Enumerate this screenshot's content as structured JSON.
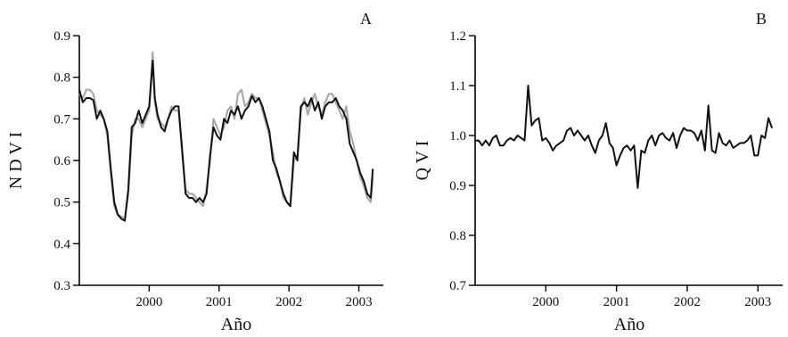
{
  "chart_data": [
    {
      "type": "line",
      "panel_label": "A",
      "xlabel": "Año",
      "ylabel": "N D V I",
      "xlim": [
        1999.0,
        2003.35
      ],
      "ylim": [
        0.3,
        0.9
      ],
      "x_ticks": [
        2000,
        2001,
        2002,
        2003
      ],
      "y_ticks": [
        0.3,
        0.4,
        0.5,
        0.6,
        0.7,
        0.8,
        0.9
      ],
      "y_tick_labels": [
        "0.3",
        "0.4",
        "0.5",
        "0.6",
        "0.7",
        "0.8",
        "0.9"
      ],
      "grid": false,
      "colors": [
        "#111111",
        "#a9a9a9"
      ],
      "series": [
        {
          "x": [
            1999.0,
            1999.05,
            1999.1,
            1999.15,
            1999.2,
            1999.25,
            1999.3,
            1999.35,
            1999.4,
            1999.45,
            1999.5,
            1999.55,
            1999.6,
            1999.65,
            1999.7,
            1999.75,
            1999.8,
            1999.85,
            1999.9,
            1999.95,
            2000.0,
            2000.05,
            2000.08,
            2000.12,
            2000.17,
            2000.22,
            2000.27,
            2000.32,
            2000.37,
            2000.42,
            2000.47,
            2000.52,
            2000.57,
            2000.62,
            2000.67,
            2000.72,
            2000.77,
            2000.82,
            2000.87,
            2000.92,
            2000.97,
            2001.02,
            2001.07,
            2001.12,
            2001.17,
            2001.22,
            2001.27,
            2001.32,
            2001.37,
            2001.42,
            2001.47,
            2001.52,
            2001.57,
            2001.62,
            2001.67,
            2001.72,
            2001.77,
            2001.82,
            2001.87,
            2001.92,
            2001.97,
            2002.02,
            2002.07,
            2002.12,
            2002.17,
            2002.22,
            2002.27,
            2002.32,
            2002.37,
            2002.42,
            2002.47,
            2002.52,
            2002.57,
            2002.62,
            2002.67,
            2002.72,
            2002.77,
            2002.82,
            2002.87,
            2002.92,
            2002.97,
            2003.02,
            2003.07,
            2003.12,
            2003.17,
            2003.2
          ],
          "y": [
            0.77,
            0.74,
            0.75,
            0.75,
            0.745,
            0.7,
            0.72,
            0.7,
            0.67,
            0.58,
            0.5,
            0.47,
            0.46,
            0.455,
            0.53,
            0.68,
            0.69,
            0.72,
            0.69,
            0.71,
            0.73,
            0.84,
            0.75,
            0.71,
            0.68,
            0.67,
            0.7,
            0.72,
            0.73,
            0.73,
            0.63,
            0.52,
            0.51,
            0.51,
            0.5,
            0.51,
            0.5,
            0.52,
            0.61,
            0.68,
            0.66,
            0.65,
            0.7,
            0.69,
            0.72,
            0.71,
            0.73,
            0.7,
            0.72,
            0.73,
            0.755,
            0.74,
            0.75,
            0.73,
            0.7,
            0.67,
            0.6,
            0.58,
            0.55,
            0.52,
            0.5,
            0.49,
            0.62,
            0.6,
            0.73,
            0.74,
            0.73,
            0.75,
            0.72,
            0.74,
            0.7,
            0.73,
            0.74,
            0.74,
            0.75,
            0.73,
            0.72,
            0.7,
            0.64,
            0.62,
            0.6,
            0.57,
            0.55,
            0.52,
            0.51,
            0.58
          ]
        },
        {
          "x": [
            1999.0,
            1999.05,
            1999.1,
            1999.15,
            1999.2,
            1999.25,
            1999.3,
            1999.35,
            1999.4,
            1999.45,
            1999.5,
            1999.55,
            1999.6,
            1999.65,
            1999.7,
            1999.75,
            1999.8,
            1999.85,
            1999.9,
            1999.95,
            2000.0,
            2000.05,
            2000.08,
            2000.12,
            2000.17,
            2000.22,
            2000.27,
            2000.32,
            2000.37,
            2000.42,
            2000.47,
            2000.52,
            2000.57,
            2000.62,
            2000.67,
            2000.72,
            2000.77,
            2000.82,
            2000.87,
            2000.92,
            2000.97,
            2001.02,
            2001.07,
            2001.12,
            2001.17,
            2001.22,
            2001.27,
            2001.32,
            2001.37,
            2001.42,
            2001.47,
            2001.52,
            2001.57,
            2001.62,
            2001.67,
            2001.72,
            2001.77,
            2001.82,
            2001.87,
            2001.92,
            2001.97,
            2002.02,
            2002.07,
            2002.12,
            2002.17,
            2002.22,
            2002.27,
            2002.32,
            2002.37,
            2002.42,
            2002.47,
            2002.52,
            2002.57,
            2002.62,
            2002.67,
            2002.72,
            2002.77,
            2002.82,
            2002.87,
            2002.92,
            2002.97,
            2003.02,
            2003.07,
            2003.12,
            2003.17,
            2003.2
          ],
          "y": [
            0.76,
            0.75,
            0.77,
            0.77,
            0.76,
            0.72,
            0.71,
            0.7,
            0.66,
            0.57,
            0.49,
            0.47,
            0.465,
            0.46,
            0.52,
            0.66,
            0.7,
            0.7,
            0.68,
            0.7,
            0.72,
            0.86,
            0.74,
            0.7,
            0.69,
            0.68,
            0.7,
            0.73,
            0.72,
            0.72,
            0.62,
            0.53,
            0.52,
            0.52,
            0.51,
            0.5,
            0.49,
            0.53,
            0.6,
            0.7,
            0.68,
            0.66,
            0.68,
            0.72,
            0.73,
            0.7,
            0.76,
            0.77,
            0.73,
            0.74,
            0.76,
            0.75,
            0.75,
            0.72,
            0.69,
            0.66,
            0.62,
            0.57,
            0.55,
            0.51,
            0.5,
            0.49,
            0.6,
            0.61,
            0.72,
            0.75,
            0.71,
            0.74,
            0.76,
            0.73,
            0.71,
            0.74,
            0.76,
            0.76,
            0.74,
            0.72,
            0.7,
            0.73,
            0.67,
            0.64,
            0.6,
            0.56,
            0.54,
            0.51,
            0.5,
            0.56
          ]
        }
      ]
    },
    {
      "type": "line",
      "panel_label": "B",
      "xlabel": "Año",
      "ylabel": "Q V I",
      "xlim": [
        1999.0,
        2003.35
      ],
      "ylim": [
        0.7,
        1.2
      ],
      "x_ticks": [
        2000,
        2001,
        2002,
        2003
      ],
      "y_ticks": [
        0.7,
        0.8,
        0.9,
        1.0,
        1.1,
        1.2
      ],
      "y_tick_labels": [
        "0.7",
        "0.8",
        "0.9",
        "1.0",
        "1.1",
        "1.2"
      ],
      "grid": false,
      "colors": [
        "#111111"
      ],
      "series": [
        {
          "x": [
            1999.0,
            1999.05,
            1999.1,
            1999.15,
            1999.2,
            1999.25,
            1999.3,
            1999.35,
            1999.4,
            1999.45,
            1999.5,
            1999.55,
            1999.6,
            1999.65,
            1999.7,
            1999.75,
            1999.8,
            1999.85,
            1999.9,
            1999.95,
            2000.0,
            2000.05,
            2000.1,
            2000.15,
            2000.2,
            2000.25,
            2000.3,
            2000.35,
            2000.4,
            2000.45,
            2000.5,
            2000.55,
            2000.6,
            2000.65,
            2000.7,
            2000.75,
            2000.8,
            2000.85,
            2000.9,
            2000.95,
            2001.0,
            2001.05,
            2001.1,
            2001.15,
            2001.2,
            2001.25,
            2001.3,
            2001.35,
            2001.4,
            2001.45,
            2001.5,
            2001.55,
            2001.6,
            2001.65,
            2001.7,
            2001.75,
            2001.8,
            2001.85,
            2001.9,
            2001.95,
            2002.0,
            2002.05,
            2002.1,
            2002.15,
            2002.2,
            2002.25,
            2002.3,
            2002.35,
            2002.4,
            2002.45,
            2002.5,
            2002.55,
            2002.6,
            2002.65,
            2002.7,
            2002.75,
            2002.8,
            2002.85,
            2002.9,
            2002.95,
            2003.0,
            2003.05,
            2003.1,
            2003.15,
            2003.2
          ],
          "y": [
            0.99,
            0.99,
            0.98,
            0.99,
            0.98,
            0.995,
            1.0,
            0.98,
            0.98,
            0.99,
            0.995,
            0.99,
            1.0,
            0.995,
            0.99,
            1.1,
            1.02,
            1.03,
            1.035,
            0.99,
            0.995,
            0.985,
            0.97,
            0.98,
            0.985,
            0.99,
            1.01,
            1.015,
            1.0,
            1.01,
            1.0,
            0.99,
            1.0,
            0.98,
            0.965,
            0.99,
            1.0,
            1.025,
            0.985,
            0.975,
            0.94,
            0.96,
            0.975,
            0.98,
            0.97,
            0.98,
            0.895,
            0.97,
            0.965,
            0.99,
            1.0,
            0.98,
            1.0,
            1.005,
            0.995,
            0.99,
            1.005,
            0.975,
            1.0,
            1.015,
            1.01,
            1.01,
            1.005,
            0.99,
            1.01,
            0.97,
            1.06,
            0.97,
            0.965,
            1.005,
            0.985,
            0.98,
            0.99,
            0.975,
            0.98,
            0.985,
            0.985,
            0.99,
            1.0,
            0.96,
            0.96,
            1.0,
            0.995,
            1.035,
            1.015
          ]
        }
      ]
    }
  ]
}
